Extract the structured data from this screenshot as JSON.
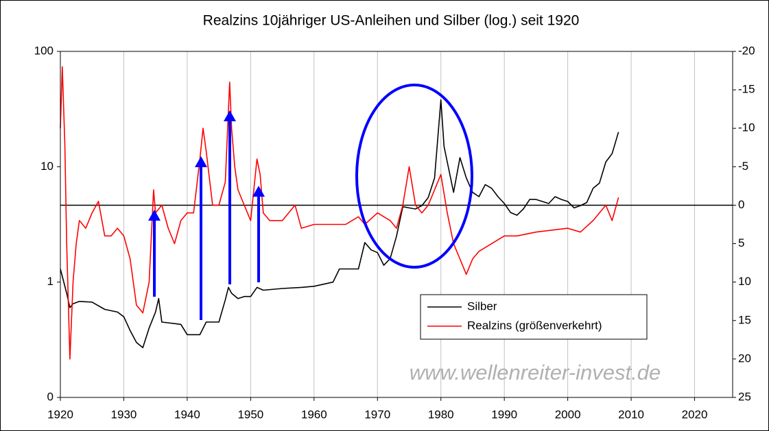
{
  "chart_data": {
    "type": "line",
    "title": "Realzins 10jähriger US-Anleihen und Silber (log.) seit 1920",
    "watermark": "www.wellenreiter-invest.de",
    "xlim": [
      1920,
      2026
    ],
    "xticks": [
      1920,
      1930,
      1940,
      1950,
      1960,
      1970,
      1980,
      1990,
      2000,
      2010,
      2020
    ],
    "ylim": [
      0.1,
      100
    ],
    "ylog": true,
    "yticks": [
      {
        "value": 0.1,
        "label": "0"
      },
      1,
      10,
      100
    ],
    "y2lim": [
      -20,
      25
    ],
    "y2_reversed": true,
    "y2ticks": [
      -20,
      -15,
      -10,
      -5,
      0,
      5,
      10,
      15,
      20,
      25
    ],
    "grid": "x",
    "legend": "lower right",
    "series": [
      {
        "name": "Silber",
        "color": "#000000",
        "x": [
          1920,
          1921,
          1921.5,
          1922,
          1923,
          1925,
          1927,
          1929,
          1930,
          1931,
          1932,
          1933,
          1934,
          1935,
          1935.5,
          1936,
          1939,
          1940,
          1942,
          1943,
          1945,
          1946,
          1946.5,
          1947,
          1948,
          1949,
          1950,
          1951,
          1952,
          1955,
          1958,
          1960,
          1963,
          1964,
          1967,
          1968,
          1969,
          1970,
          1971,
          1972,
          1973,
          1974,
          1975,
          1976,
          1977,
          1978,
          1979,
          1980,
          1980.5,
          1981,
          1982,
          1983,
          1984,
          1985,
          1986,
          1987,
          1988,
          1989,
          1990,
          1991,
          1992,
          1993,
          1994,
          1995,
          1996,
          1997,
          1998,
          1999,
          2000,
          2001,
          2002,
          2003,
          2004,
          2005,
          2006,
          2007,
          2008
        ],
        "values": [
          1.3,
          0.8,
          0.6,
          0.65,
          0.68,
          0.67,
          0.58,
          0.55,
          0.5,
          0.38,
          0.3,
          0.27,
          0.4,
          0.55,
          0.72,
          0.45,
          0.43,
          0.35,
          0.35,
          0.45,
          0.45,
          0.7,
          0.9,
          0.8,
          0.72,
          0.75,
          0.75,
          0.9,
          0.85,
          0.88,
          0.9,
          0.92,
          1.0,
          1.3,
          1.3,
          2.2,
          1.9,
          1.8,
          1.4,
          1.6,
          2.5,
          4.5,
          4.4,
          4.3,
          4.6,
          5.4,
          8,
          38,
          15,
          11,
          6,
          12,
          8,
          6,
          5.5,
          7,
          6.5,
          5.5,
          4.8,
          4,
          3.8,
          4.3,
          5.2,
          5.2,
          5,
          4.8,
          5.5,
          5.2,
          5,
          4.4,
          4.6,
          4.9,
          6.5,
          7.2,
          11,
          13,
          20
        ]
      },
      {
        "name": "Realzins (größenverkehrt)",
        "color": "#ff0000",
        "axis": "y2",
        "x": [
          1920,
          1920.3,
          1920.7,
          1921,
          1921.5,
          1922,
          1922.5,
          1923,
          1924,
          1925,
          1926,
          1927,
          1928,
          1929,
          1930,
          1931,
          1932,
          1933,
          1934,
          1934.7,
          1935,
          1936,
          1937,
          1938,
          1939,
          1940,
          1941,
          1942,
          1942.5,
          1943,
          1944,
          1945,
          1946,
          1946.7,
          1947,
          1947.5,
          1948,
          1949,
          1950,
          1951,
          1951.5,
          1952,
          1953,
          1955,
          1957,
          1958,
          1960,
          1965,
          1967,
          1968,
          1970,
          1972,
          1973,
          1974,
          1975,
          1976,
          1977,
          1978,
          1979,
          1980,
          1981,
          1982,
          1983,
          1984,
          1985,
          1986,
          1988,
          1990,
          1992,
          1995,
          2000,
          2002,
          2004,
          2005,
          2006,
          2007,
          2008
        ],
        "values": [
          -10,
          -18,
          -8,
          5,
          20,
          10,
          5,
          2,
          3,
          1,
          -0.5,
          4,
          4,
          3,
          4,
          7,
          13,
          14,
          10,
          -2,
          1,
          0,
          3,
          5,
          2,
          1,
          1,
          -6,
          -10,
          -7,
          0,
          0,
          -3,
          -16,
          -10,
          -5,
          -2,
          0,
          2,
          -6,
          -4,
          1,
          2,
          2,
          0,
          3,
          2.5,
          2.5,
          1.5,
          2.5,
          1,
          2,
          3,
          0,
          -5,
          0,
          1,
          0,
          -2,
          -4,
          1,
          5,
          7,
          9,
          7,
          6,
          5,
          4,
          4,
          3.5,
          3,
          3.5,
          2,
          1,
          0,
          2,
          -1
        ]
      }
    ]
  }
}
